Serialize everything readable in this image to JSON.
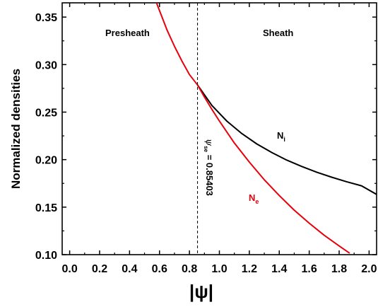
{
  "chart_data": {
    "type": "line",
    "xlabel": "|ψ|",
    "ylabel": "Normalized densities",
    "xlim": [
      -0.05,
      2.05
    ],
    "ylim": [
      0.1,
      0.365
    ],
    "xticks": [
      0.0,
      0.2,
      0.4,
      0.6,
      0.8,
      1.0,
      1.2,
      1.4,
      1.6,
      1.8,
      2.0
    ],
    "xtick_labels": [
      "0.0",
      "0.2",
      "0.4",
      "0.6",
      "0.8",
      "1.0",
      "1.2",
      "1.4",
      "1.6",
      "1.8",
      "2.0"
    ],
    "yticks": [
      0.1,
      0.15,
      0.2,
      0.25,
      0.3,
      0.35
    ],
    "ytick_labels": [
      "0.10",
      "0.15",
      "0.20",
      "0.25",
      "0.30",
      "0.35"
    ],
    "grid": false,
    "series": [
      {
        "name": "N_i",
        "label_main": "N",
        "label_sub": "i",
        "color": "#000000",
        "x": [
          0.85403,
          0.95,
          1.05,
          1.15,
          1.25,
          1.35,
          1.45,
          1.55,
          1.65,
          1.75,
          1.85,
          1.95,
          2.05
        ],
        "y": [
          0.2786,
          0.257,
          0.2405,
          0.2274,
          0.2165,
          0.2075,
          0.1995,
          0.1928,
          0.1868,
          0.1815,
          0.1767,
          0.1724,
          0.1634
        ]
      },
      {
        "name": "N_e",
        "label_main": "N",
        "label_sub": "e",
        "color": "#e8000b",
        "x": [
          0.58,
          0.65,
          0.7,
          0.75,
          0.8,
          0.85403,
          0.9,
          0.95,
          1.0,
          1.1,
          1.2,
          1.3,
          1.4,
          1.5,
          1.6,
          1.7,
          1.8,
          1.87
        ],
        "y": [
          0.365,
          0.3365,
          0.3193,
          0.3037,
          0.2895,
          0.2786,
          0.2659,
          0.2529,
          0.2406,
          0.2175,
          0.1974,
          0.1788,
          0.1622,
          0.1468,
          0.1331,
          0.1204,
          0.1092,
          0.1015
        ]
      }
    ],
    "vline": {
      "x": 0.85403,
      "style": "dashed",
      "label": "ψ",
      "label_sub": "se",
      "label_value": " = 0.85403"
    },
    "annotations": {
      "left_region": "Presheath",
      "right_region": "Sheath"
    }
  }
}
